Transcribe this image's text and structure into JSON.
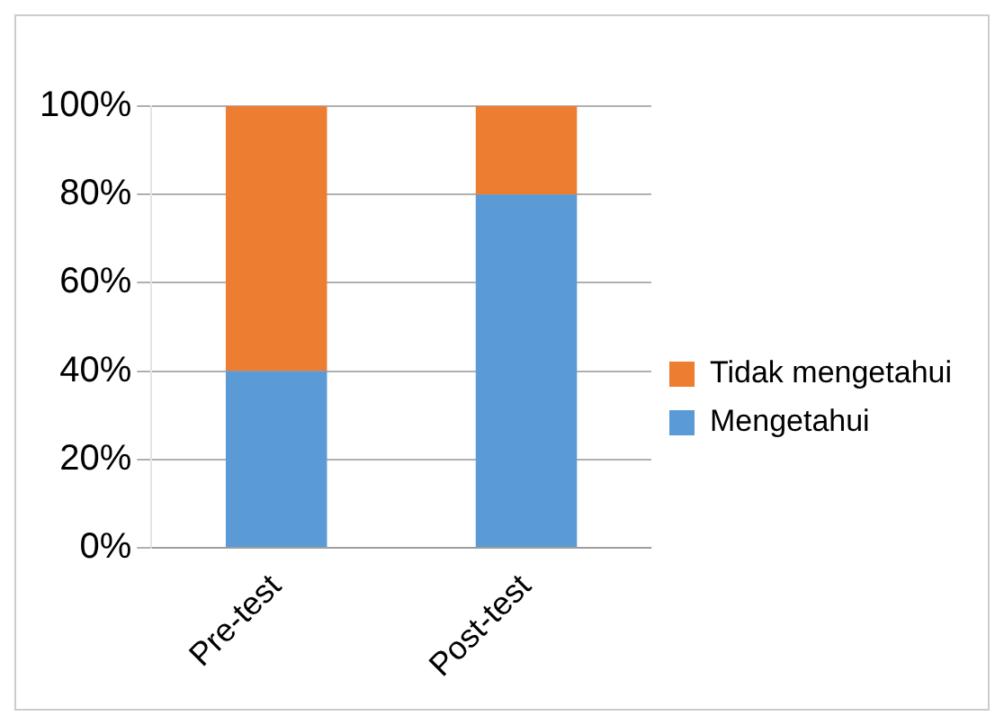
{
  "chart_data": {
    "type": "bar",
    "stacked": true,
    "categories": [
      "Pre-test",
      "Post-test"
    ],
    "series": [
      {
        "name": "Mengetahui",
        "color": "#5b9bd5",
        "values": [
          40,
          80
        ]
      },
      {
        "name": "Tidak mengetahui",
        "color": "#ed7d31",
        "values": [
          60,
          20
        ]
      }
    ],
    "ylim": [
      0,
      100
    ],
    "yticks": [
      {
        "value": 0,
        "label": "0%"
      },
      {
        "value": 20,
        "label": "20%"
      },
      {
        "value": 40,
        "label": "40%"
      },
      {
        "value": 60,
        "label": "60%"
      },
      {
        "value": 80,
        "label": "80%"
      },
      {
        "value": 100,
        "label": "100%"
      }
    ],
    "grid": "y",
    "legend": "right"
  }
}
